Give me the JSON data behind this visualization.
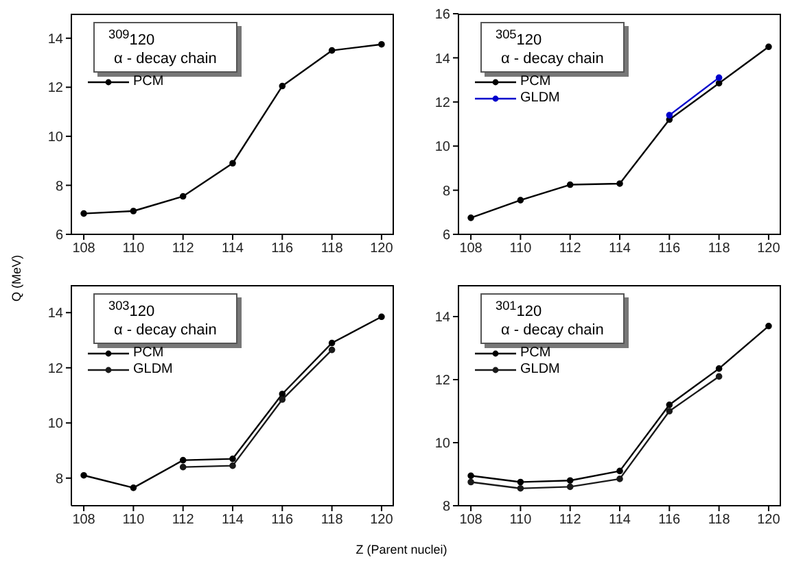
{
  "chart_data": [
    {
      "type": "line",
      "title": "$^{309}$120",
      "subtitle": "α - decay chain",
      "ylabel": "Q (MeV)",
      "x": [
        108,
        110,
        112,
        114,
        116,
        118,
        120
      ],
      "xlim": [
        107.5,
        120.5
      ],
      "xticks": [
        108,
        110,
        112,
        114,
        116,
        118,
        120
      ],
      "ylim": [
        6,
        15
      ],
      "yticks": [
        6,
        8,
        10,
        12,
        14
      ],
      "marker": "circle",
      "legend": "top left",
      "grid": false,
      "series": [
        {
          "name": "PCM",
          "color": "#000000",
          "values": [
            6.85,
            6.95,
            7.55,
            8.9,
            12.05,
            13.5,
            13.75
          ]
        }
      ]
    },
    {
      "type": "line",
      "title": "$^{305}$120",
      "subtitle": "α - decay chain",
      "x": [
        108,
        110,
        112,
        114,
        116,
        118,
        120
      ],
      "xlim": [
        107.5,
        120.5
      ],
      "xticks": [
        108,
        110,
        112,
        114,
        116,
        118,
        120
      ],
      "ylim": [
        6,
        16
      ],
      "yticks": [
        6,
        8,
        10,
        12,
        14,
        16
      ],
      "marker": "circle",
      "legend": "top left",
      "grid": false,
      "series": [
        {
          "name": "PCM",
          "color": "#000000",
          "values": [
            6.75,
            7.55,
            8.25,
            8.3,
            11.2,
            12.85,
            14.5
          ]
        },
        {
          "name": "GLDM",
          "color": "#0000cc",
          "values": [
            null,
            null,
            null,
            null,
            11.4,
            13.1,
            null
          ]
        }
      ]
    },
    {
      "type": "line",
      "title": "$^{303}$120",
      "subtitle": "α - decay chain",
      "xlabel": "Z (Parent nuclei)",
      "x": [
        108,
        110,
        112,
        114,
        116,
        118,
        120
      ],
      "xlim": [
        107.5,
        120.5
      ],
      "xticks": [
        108,
        110,
        112,
        114,
        116,
        118,
        120
      ],
      "ylim": [
        7,
        15
      ],
      "yticks": [
        8,
        10,
        12,
        14
      ],
      "marker": "circle",
      "legend": "top left",
      "grid": false,
      "series": [
        {
          "name": "PCM",
          "color": "#000000",
          "values": [
            8.1,
            7.65,
            8.65,
            8.7,
            11.05,
            12.9,
            13.85
          ]
        },
        {
          "name": "GLDM",
          "color": "#1a1a1a",
          "values": [
            null,
            null,
            8.4,
            8.45,
            10.85,
            12.65,
            null
          ]
        }
      ]
    },
    {
      "type": "line",
      "title": "$^{301}$120",
      "subtitle": "α - decay chain",
      "x": [
        108,
        110,
        112,
        114,
        116,
        118,
        120
      ],
      "xlim": [
        107.5,
        120.5
      ],
      "xticks": [
        108,
        110,
        112,
        114,
        116,
        118,
        120
      ],
      "ylim": [
        8,
        15
      ],
      "yticks": [
        8,
        10,
        12,
        14
      ],
      "marker": "circle",
      "legend": "top left",
      "grid": false,
      "series": [
        {
          "name": "PCM",
          "color": "#000000",
          "values": [
            8.95,
            8.75,
            8.8,
            9.1,
            11.2,
            12.35,
            13.7
          ]
        },
        {
          "name": "GLDM",
          "color": "#1a1a1a",
          "values": [
            8.75,
            8.55,
            8.6,
            8.85,
            11.0,
            12.1,
            null
          ]
        }
      ]
    }
  ]
}
